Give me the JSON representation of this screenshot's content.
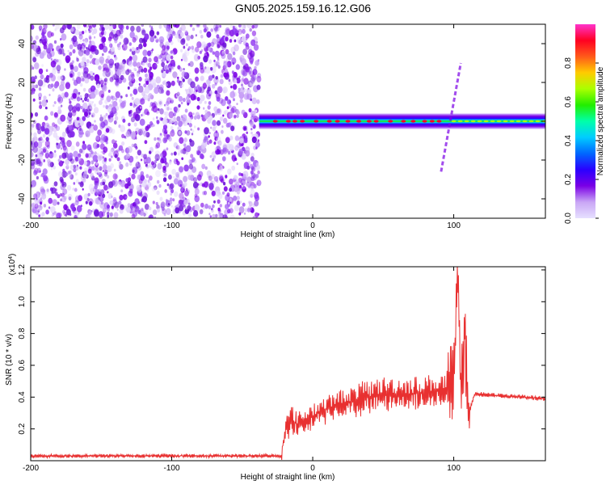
{
  "figure": {
    "title": "GN05.2025.159.16.12.G06"
  },
  "colors": {
    "snr_line": "#e83030",
    "spectrogram_noise": "#7a2ee8",
    "axes": "#000000"
  },
  "colorscale": [
    "#e6e0ff",
    "#c9a6f5",
    "#7a00e6",
    "#2a00ff",
    "#0066ff",
    "#00ccff",
    "#00ffaa",
    "#22ee00",
    "#aaff00",
    "#ffcc00",
    "#ff5a1a",
    "#ff0022",
    "#ff33cc"
  ],
  "chart_data": [
    {
      "type": "heatmap",
      "title": "GN05.2025.159.16.12.G06",
      "xlabel": "Height of straight line (km)",
      "ylabel": "Frequency (Hz)",
      "xlim": [
        -200,
        165
      ],
      "ylim": [
        -50,
        50
      ],
      "xticks": [
        -200,
        -100,
        0,
        100
      ],
      "yticks": [
        -40,
        -20,
        0,
        20,
        40
      ],
      "colorbar": {
        "label": "Normalized spectral amplitude",
        "range": [
          0,
          1
        ],
        "ticks": [
          0.0,
          0.2,
          0.4,
          0.6,
          0.8
        ]
      },
      "features": [
        {
          "name": "",
          "desc": "broadband low-amplitude noise",
          "x_range": [
            -200,
            -38
          ],
          "y_range": [
            -50,
            50
          ],
          "amplitude": 0.15
        },
        {
          "name": "",
          "desc": "narrow carrier near 0 Hz",
          "x_range": [
            -38,
            165
          ],
          "y_center": 0,
          "y_halfwidth": 2.5,
          "amplitude": 0.9
        },
        {
          "name": "",
          "desc": "diagonal streak",
          "x_start": 91,
          "y_start": -26,
          "x_end": 105,
          "y_end": 30,
          "amplitude": 0.2
        }
      ]
    },
    {
      "type": "line",
      "xlabel": "Height of straight line (km)",
      "ylabel": "SNR (10 * v/v)",
      "y_multiplier": "(x10^4)",
      "xlim": [
        -200,
        165
      ],
      "ylim": [
        0,
        1.22
      ],
      "xticks": [
        -200,
        -100,
        0,
        100
      ],
      "yticks": [
        0.2,
        0.4,
        0.6,
        0.8,
        1.0,
        1.2
      ],
      "series": [
        {
          "name": "",
          "x": [
            -200,
            -150,
            -100,
            -50,
            -22,
            -20,
            -15,
            -10,
            -5,
            0,
            10,
            20,
            30,
            40,
            50,
            60,
            70,
            80,
            90,
            95,
            100,
            103,
            105,
            108,
            110,
            115,
            130,
            150,
            165
          ],
          "y": [
            0.03,
            0.03,
            0.03,
            0.03,
            0.03,
            0.18,
            0.26,
            0.22,
            0.25,
            0.28,
            0.32,
            0.36,
            0.38,
            0.4,
            0.42,
            0.42,
            0.42,
            0.43,
            0.44,
            0.44,
            0.5,
            1.2,
            0.4,
            0.8,
            0.3,
            0.42,
            0.41,
            0.4,
            0.39
          ]
        }
      ]
    }
  ]
}
